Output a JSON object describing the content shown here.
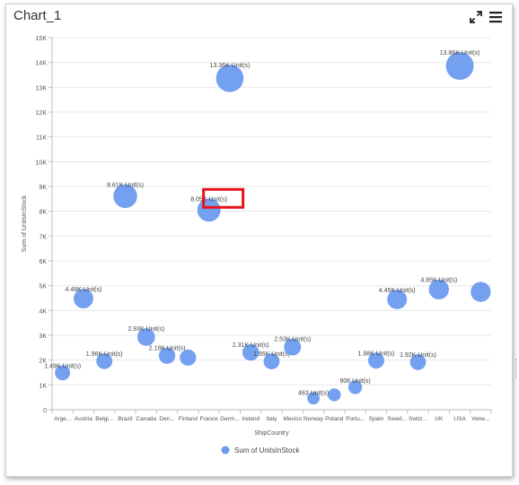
{
  "widget": {
    "title": "Chart_1",
    "expand_icon": "expand-arrows-icon",
    "menu_icon": "hamburger-menu-icon"
  },
  "colors": {
    "bubble": "#6d9bef",
    "highlight_box": "#e8121a",
    "grid": "#e8e8e8",
    "axis_text": "#555555"
  },
  "chart_data": {
    "type": "scatter",
    "subtype": "bubble",
    "xlabel": "ShipCountry",
    "ylabel": "Sum of UnitsInStock",
    "ylim": [
      0,
      15000
    ],
    "yticks": [
      "0",
      "1K",
      "2K",
      "3K",
      "4K",
      "5K",
      "6K",
      "7K",
      "8K",
      "9K",
      "10K",
      "11K",
      "12K",
      "13K",
      "14K",
      "15K"
    ],
    "categories": [
      "Arge...",
      "Austria",
      "Belgi...",
      "Brazil",
      "Canada",
      "Den...",
      "Finland",
      "France",
      "Germ...",
      "Ireland",
      "Italy",
      "Mexico",
      "Norway",
      "Poland",
      "Portu...",
      "Spain",
      "Swed...",
      "Switz...",
      "UK",
      "USA",
      "Vene..."
    ],
    "series": [
      {
        "name": "Sum of UnitsInStock",
        "values": [
          1490,
          4480,
          1960,
          8610,
          2930,
          2180,
          2100,
          8050,
          13360,
          2310,
          1950,
          2530,
          463,
          600,
          906,
          1980,
          4450,
          1920,
          4850,
          13860,
          4750
        ],
        "labels": [
          "1.49K Unit(s)",
          "4.48K Unit(s)",
          "1.96K Unit(s)",
          "8.61K Unit(s)",
          "2.93K Unit(s)",
          "2.18K Unit(s)",
          "",
          "8.05K Unit(s)",
          "13.36K Unit(s)",
          "2.31K Unit(s)",
          "1.95K Unit(s)",
          "2.53K Unit(s)",
          "463 Unit(s)",
          "",
          "906 Unit(s)",
          "1.98K Unit(s)",
          "4.45K Unit(s)",
          "1.92K Unit(s)",
          "4.85K Unit(s)",
          "13.86K Unit(s)",
          ""
        ]
      }
    ],
    "grid": true,
    "legend": "bottom-center",
    "highlighted_point": "8.05K Unit(s)"
  }
}
